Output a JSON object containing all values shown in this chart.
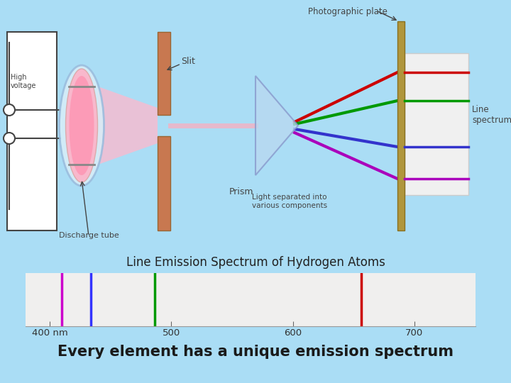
{
  "bg_color": "#aaddf5",
  "diagram_bg": "#ffffff",
  "title": "Line Emission Spectrum of Hydrogen Atoms",
  "subtitle": "Every element has a unique emission spectrum",
  "title_fontsize": 12,
  "subtitle_fontsize": 15,
  "spectrum_lines": [
    {
      "wavelength": 410,
      "color": "#cc00cc"
    },
    {
      "wavelength": 434,
      "color": "#3333ff"
    },
    {
      "wavelength": 486,
      "color": "#009900"
    },
    {
      "wavelength": 656,
      "color": "#cc0000"
    }
  ],
  "xmin": 380,
  "xmax": 750,
  "xlabel_ticks": [
    400,
    500,
    600,
    700
  ],
  "xlabel_labels": [
    "400 nm",
    "500",
    "600",
    "700"
  ],
  "spectrum_panel_color": "#f0efee",
  "photographic_plate_color": "#b8a045"
}
